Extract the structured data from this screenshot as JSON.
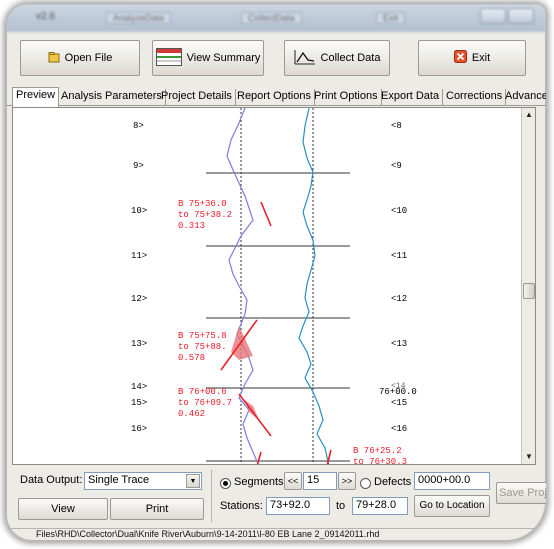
{
  "titlebar": {
    "app_title": "v2.6",
    "ghost_tabs": [
      "AnalyzeData",
      "CollectData",
      "Exit"
    ]
  },
  "toolbar": {
    "open_file": "Open File",
    "view_summary": "View Summary",
    "collect_data": "Collect Data",
    "exit": "Exit"
  },
  "tabs": [
    {
      "label": "Preview",
      "active": true
    },
    {
      "label": "Analysis Parameters",
      "active": false
    },
    {
      "label": "Project Details",
      "active": false
    },
    {
      "label": "Report Options",
      "active": false
    },
    {
      "label": "Print Options",
      "active": false
    },
    {
      "label": "Export Data",
      "active": false
    },
    {
      "label": "Corrections",
      "active": false
    },
    {
      "label": "Advanced",
      "active": false
    }
  ],
  "preview": {
    "left_markers": [
      "8>",
      "9>",
      "10>",
      "11>",
      "12>",
      "13>",
      "14>",
      "15>",
      "16>"
    ],
    "right_markers": [
      "<8",
      "<9",
      "<10",
      "<11",
      "<12",
      "<13",
      "<15",
      "<16"
    ],
    "station_marker": "76+00.0",
    "overlap_marker": "<14",
    "defects": [
      {
        "lines": [
          "B 75+36.0",
          "to 75+38.2",
          "0.313"
        ]
      },
      {
        "lines": [
          "B 75+75.8",
          "to 75+88.",
          "0.578"
        ]
      },
      {
        "lines": [
          "B 76+00.6",
          "to 76+09.7",
          "0.462"
        ]
      },
      {
        "lines": [
          "B 76+25.2",
          "to 76+30.3"
        ]
      }
    ],
    "colors": {
      "defect": "#e8202a",
      "trace_a": "#7b7ee0",
      "trace_b": "#2a8fc0",
      "guide": "#333333"
    }
  },
  "bottom": {
    "data_output_label": "Data Output:",
    "data_output_value": "Single Trace",
    "view_button": "View",
    "print_button": "Print",
    "segments_label": "Segments",
    "segment_prev": "<<",
    "segment_value": "15",
    "segment_next": ">>",
    "defects_label": "Defects",
    "location_value": "0000+00.0",
    "stations_label": "Stations:",
    "station_from": "73+92.0",
    "to_label": "to",
    "station_to": "79+28.0",
    "go_to_location": "Go to Location",
    "save_project": "Save Proje"
  },
  "status_path": "Files\\RHD\\Collector\\Dual\\Knife River\\Auburn\\9-14-2011\\I-80 EB Lane 2_09142011.rhd"
}
